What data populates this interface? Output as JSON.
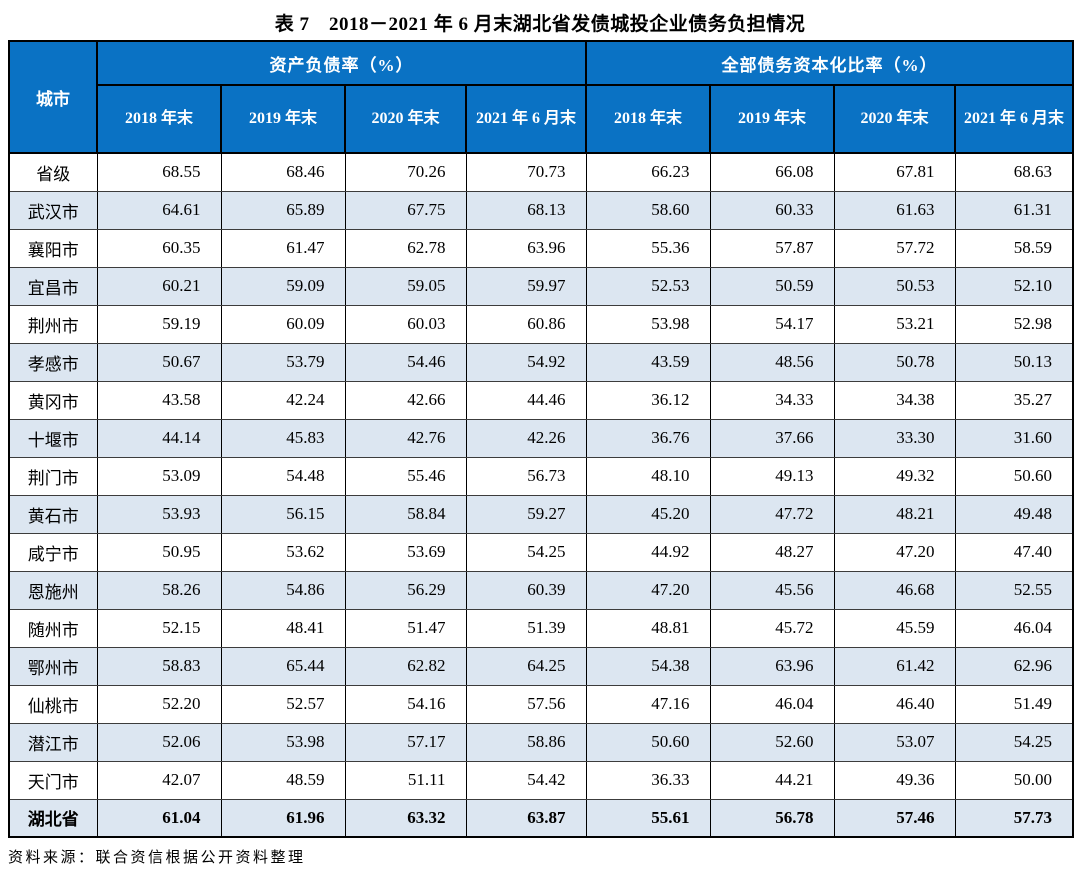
{
  "title": "表 7　2018－2021 年 6 月末湖北省发债城投企业债务负担情况",
  "source_note": "资料来源：联合资信根据公开资料整理",
  "colors": {
    "header_bg": "#0a72c4",
    "header_text": "#ffffff",
    "row_alt_bg": "#dce6f1",
    "border": "#000000"
  },
  "table": {
    "corner_header": "城市",
    "groups": [
      {
        "label": "资产负债率（%）"
      },
      {
        "label": "全部债务资本化比率（%）"
      }
    ],
    "sub_headers": [
      "2018 年末",
      "2019 年末",
      "2020 年末",
      "2021 年 6 月末"
    ],
    "rows": [
      {
        "city": "省级",
        "values": [
          "68.55",
          "68.46",
          "70.26",
          "70.73",
          "66.23",
          "66.08",
          "67.81",
          "68.63"
        ],
        "bold": false
      },
      {
        "city": "武汉市",
        "values": [
          "64.61",
          "65.89",
          "67.75",
          "68.13",
          "58.60",
          "60.33",
          "61.63",
          "61.31"
        ],
        "bold": false
      },
      {
        "city": "襄阳市",
        "values": [
          "60.35",
          "61.47",
          "62.78",
          "63.96",
          "55.36",
          "57.87",
          "57.72",
          "58.59"
        ],
        "bold": false
      },
      {
        "city": "宜昌市",
        "values": [
          "60.21",
          "59.09",
          "59.05",
          "59.97",
          "52.53",
          "50.59",
          "50.53",
          "52.10"
        ],
        "bold": false
      },
      {
        "city": "荆州市",
        "values": [
          "59.19",
          "60.09",
          "60.03",
          "60.86",
          "53.98",
          "54.17",
          "53.21",
          "52.98"
        ],
        "bold": false
      },
      {
        "city": "孝感市",
        "values": [
          "50.67",
          "53.79",
          "54.46",
          "54.92",
          "43.59",
          "48.56",
          "50.78",
          "50.13"
        ],
        "bold": false
      },
      {
        "city": "黄冈市",
        "values": [
          "43.58",
          "42.24",
          "42.66",
          "44.46",
          "36.12",
          "34.33",
          "34.38",
          "35.27"
        ],
        "bold": false
      },
      {
        "city": "十堰市",
        "values": [
          "44.14",
          "45.83",
          "42.76",
          "42.26",
          "36.76",
          "37.66",
          "33.30",
          "31.60"
        ],
        "bold": false
      },
      {
        "city": "荆门市",
        "values": [
          "53.09",
          "54.48",
          "55.46",
          "56.73",
          "48.10",
          "49.13",
          "49.32",
          "50.60"
        ],
        "bold": false
      },
      {
        "city": "黄石市",
        "values": [
          "53.93",
          "56.15",
          "58.84",
          "59.27",
          "45.20",
          "47.72",
          "48.21",
          "49.48"
        ],
        "bold": false
      },
      {
        "city": "咸宁市",
        "values": [
          "50.95",
          "53.62",
          "53.69",
          "54.25",
          "44.92",
          "48.27",
          "47.20",
          "47.40"
        ],
        "bold": false
      },
      {
        "city": "恩施州",
        "values": [
          "58.26",
          "54.86",
          "56.29",
          "60.39",
          "47.20",
          "45.56",
          "46.68",
          "52.55"
        ],
        "bold": false
      },
      {
        "city": "随州市",
        "values": [
          "52.15",
          "48.41",
          "51.47",
          "51.39",
          "48.81",
          "45.72",
          "45.59",
          "46.04"
        ],
        "bold": false
      },
      {
        "city": "鄂州市",
        "values": [
          "58.83",
          "65.44",
          "62.82",
          "64.25",
          "54.38",
          "63.96",
          "61.42",
          "62.96"
        ],
        "bold": false
      },
      {
        "city": "仙桃市",
        "values": [
          "52.20",
          "52.57",
          "54.16",
          "57.56",
          "47.16",
          "46.04",
          "46.40",
          "51.49"
        ],
        "bold": false
      },
      {
        "city": "潜江市",
        "values": [
          "52.06",
          "53.98",
          "57.17",
          "58.86",
          "50.60",
          "52.60",
          "53.07",
          "54.25"
        ],
        "bold": false
      },
      {
        "city": "天门市",
        "values": [
          "42.07",
          "48.59",
          "51.11",
          "54.42",
          "36.33",
          "44.21",
          "49.36",
          "50.00"
        ],
        "bold": false
      },
      {
        "city": "湖北省",
        "values": [
          "61.04",
          "61.96",
          "63.32",
          "63.87",
          "55.61",
          "56.78",
          "57.46",
          "57.73"
        ],
        "bold": true
      }
    ]
  }
}
